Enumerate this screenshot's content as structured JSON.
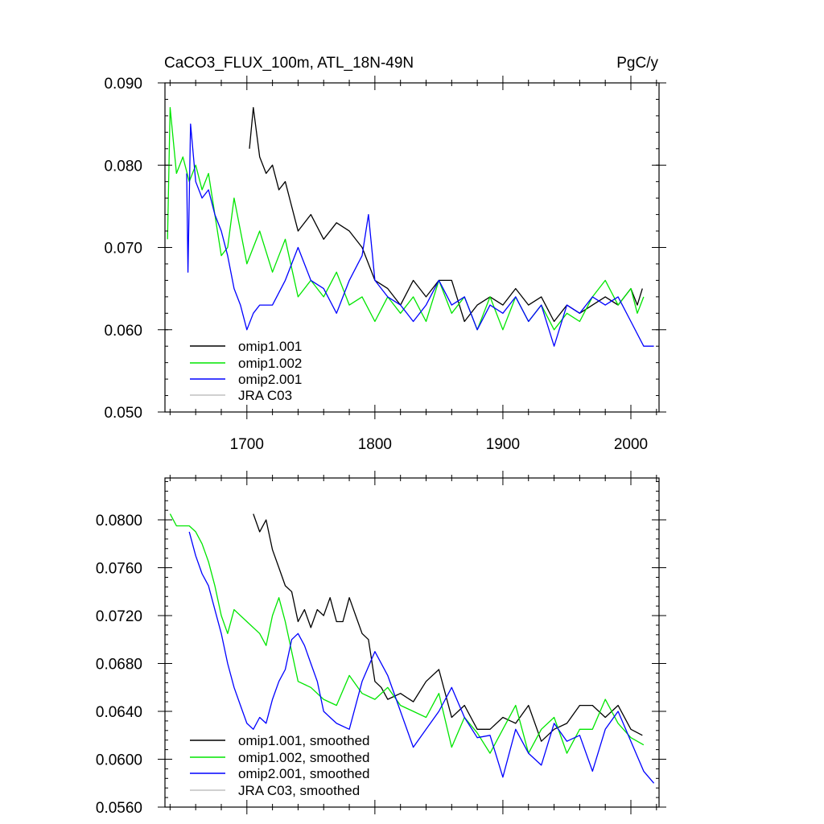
{
  "chart_data": [
    {
      "type": "line",
      "title": "CaCO3_FLUX_100m, ATL_18N-49N",
      "units": "PgC/y",
      "xlim": [
        1636,
        2022
      ],
      "ylim": [
        0.05,
        0.09
      ],
      "xticks": [
        1700,
        1800,
        1900,
        2000
      ],
      "xtick_labels": [
        "1700",
        "1800",
        "1900",
        "2000"
      ],
      "yticks": [
        0.05,
        0.06,
        0.07,
        0.08,
        0.09
      ],
      "ytick_labels": [
        "0.050",
        "0.060",
        "0.070",
        "0.080",
        "0.090"
      ],
      "legend_location": "bottom-left",
      "series": [
        {
          "name": "omip1.001",
          "color": "#000000",
          "x": [
            1702,
            1705,
            1710,
            1715,
            1720,
            1725,
            1730,
            1740,
            1750,
            1760,
            1770,
            1780,
            1790,
            1800,
            1810,
            1820,
            1830,
            1840,
            1850,
            1860,
            1870,
            1880,
            1890,
            1900,
            1910,
            1920,
            1930,
            1940,
            1950,
            1960,
            1970,
            1980,
            1990,
            2000,
            2005,
            2009
          ],
          "values": [
            0.082,
            0.087,
            0.081,
            0.079,
            0.08,
            0.077,
            0.078,
            0.072,
            0.074,
            0.071,
            0.073,
            0.072,
            0.07,
            0.066,
            0.065,
            0.063,
            0.066,
            0.064,
            0.066,
            0.066,
            0.061,
            0.063,
            0.064,
            0.063,
            0.065,
            0.063,
            0.064,
            0.061,
            0.063,
            0.062,
            0.063,
            0.064,
            0.063,
            0.065,
            0.063,
            0.065
          ]
        },
        {
          "name": "omip1.002",
          "color": "#00e600",
          "x": [
            1638,
            1640,
            1645,
            1650,
            1655,
            1660,
            1665,
            1670,
            1675,
            1680,
            1685,
            1690,
            1700,
            1710,
            1720,
            1730,
            1740,
            1750,
            1760,
            1770,
            1780,
            1790,
            1800,
            1810,
            1820,
            1830,
            1840,
            1850,
            1860,
            1870,
            1880,
            1890,
            1900,
            1910,
            1920,
            1930,
            1940,
            1950,
            1960,
            1970,
            1980,
            1990,
            2000,
            2005,
            2010
          ],
          "values": [
            0.071,
            0.087,
            0.079,
            0.081,
            0.078,
            0.08,
            0.077,
            0.079,
            0.074,
            0.069,
            0.07,
            0.076,
            0.068,
            0.072,
            0.067,
            0.071,
            0.064,
            0.066,
            0.064,
            0.067,
            0.063,
            0.064,
            0.061,
            0.064,
            0.062,
            0.064,
            0.061,
            0.066,
            0.062,
            0.064,
            0.06,
            0.064,
            0.06,
            0.064,
            0.061,
            0.063,
            0.06,
            0.062,
            0.061,
            0.064,
            0.066,
            0.063,
            0.065,
            0.062,
            0.064
          ]
        },
        {
          "name": "omip2.001",
          "color": "#0000ff",
          "x": [
            1653,
            1654,
            1656,
            1660,
            1665,
            1670,
            1675,
            1680,
            1685,
            1690,
            1695,
            1700,
            1705,
            1710,
            1720,
            1730,
            1740,
            1750,
            1760,
            1770,
            1780,
            1790,
            1795,
            1800,
            1810,
            1820,
            1830,
            1840,
            1850,
            1860,
            1870,
            1880,
            1890,
            1900,
            1910,
            1920,
            1930,
            1940,
            1950,
            1960,
            1970,
            1980,
            1990,
            2000,
            2010,
            2018
          ],
          "values": [
            0.079,
            0.067,
            0.085,
            0.078,
            0.076,
            0.077,
            0.074,
            0.072,
            0.069,
            0.065,
            0.063,
            0.06,
            0.062,
            0.063,
            0.063,
            0.066,
            0.07,
            0.066,
            0.065,
            0.062,
            0.066,
            0.069,
            0.074,
            0.066,
            0.064,
            0.063,
            0.061,
            0.063,
            0.066,
            0.063,
            0.064,
            0.06,
            0.063,
            0.062,
            0.064,
            0.061,
            0.063,
            0.058,
            0.063,
            0.062,
            0.064,
            0.063,
            0.064,
            0.061,
            0.058,
            0.058
          ]
        },
        {
          "name": "JRA C03",
          "color": "#c0c0c0",
          "x": [],
          "values": []
        }
      ]
    },
    {
      "type": "line",
      "title": "",
      "xlim": [
        1636,
        2022
      ],
      "ylim": [
        0.056,
        0.0835
      ],
      "xticks": [
        1700,
        1800,
        1900,
        2000
      ],
      "yticks": [
        0.056,
        0.06,
        0.064,
        0.068,
        0.072,
        0.076,
        0.08
      ],
      "ytick_labels": [
        "0.0560",
        "0.0600",
        "0.0640",
        "0.0680",
        "0.0720",
        "0.0760",
        "0.0800"
      ],
      "legend_location": "bottom-left",
      "series": [
        {
          "name": "omip1.001, smoothed",
          "color": "#000000",
          "x": [
            1705,
            1710,
            1715,
            1720,
            1725,
            1730,
            1735,
            1740,
            1745,
            1750,
            1755,
            1760,
            1765,
            1770,
            1775,
            1780,
            1785,
            1790,
            1795,
            1800,
            1805,
            1810,
            1820,
            1830,
            1840,
            1850,
            1860,
            1870,
            1880,
            1890,
            1900,
            1910,
            1920,
            1930,
            1940,
            1950,
            1960,
            1970,
            1980,
            1990,
            2000,
            2009
          ],
          "values": [
            0.0805,
            0.079,
            0.08,
            0.0775,
            0.076,
            0.0745,
            0.074,
            0.0715,
            0.0725,
            0.071,
            0.0725,
            0.072,
            0.0735,
            0.0715,
            0.0715,
            0.0735,
            0.072,
            0.0705,
            0.07,
            0.0665,
            0.066,
            0.065,
            0.0655,
            0.0648,
            0.0665,
            0.0675,
            0.0635,
            0.0645,
            0.0625,
            0.0625,
            0.0635,
            0.063,
            0.0645,
            0.0615,
            0.0625,
            0.063,
            0.0645,
            0.0645,
            0.0635,
            0.0645,
            0.0625,
            0.062
          ]
        },
        {
          "name": "omip1.002, smoothed",
          "color": "#00e600",
          "x": [
            1640,
            1645,
            1650,
            1655,
            1660,
            1665,
            1670,
            1675,
            1680,
            1685,
            1690,
            1700,
            1710,
            1715,
            1720,
            1725,
            1730,
            1735,
            1740,
            1750,
            1760,
            1770,
            1780,
            1790,
            1800,
            1810,
            1820,
            1830,
            1840,
            1850,
            1860,
            1870,
            1880,
            1890,
            1900,
            1910,
            1920,
            1930,
            1940,
            1950,
            1960,
            1970,
            1980,
            1990,
            2000,
            2010
          ],
          "values": [
            0.0805,
            0.0795,
            0.0795,
            0.0795,
            0.079,
            0.078,
            0.0765,
            0.0745,
            0.072,
            0.0705,
            0.0725,
            0.0715,
            0.0705,
            0.0695,
            0.072,
            0.0735,
            0.0715,
            0.069,
            0.0665,
            0.066,
            0.065,
            0.0645,
            0.067,
            0.0655,
            0.065,
            0.066,
            0.0645,
            0.064,
            0.0635,
            0.0655,
            0.061,
            0.0635,
            0.0622,
            0.0605,
            0.0625,
            0.0645,
            0.0605,
            0.0625,
            0.0635,
            0.0605,
            0.0625,
            0.0625,
            0.065,
            0.063,
            0.0618,
            0.0612
          ]
        },
        {
          "name": "omip2.001, smoothed",
          "color": "#0000ff",
          "x": [
            1655,
            1660,
            1665,
            1670,
            1675,
            1680,
            1685,
            1690,
            1695,
            1700,
            1705,
            1710,
            1715,
            1720,
            1725,
            1730,
            1735,
            1740,
            1745,
            1750,
            1755,
            1760,
            1765,
            1770,
            1780,
            1790,
            1800,
            1810,
            1820,
            1830,
            1840,
            1850,
            1860,
            1870,
            1880,
            1890,
            1900,
            1910,
            1920,
            1930,
            1940,
            1950,
            1960,
            1970,
            1980,
            1990,
            2000,
            2010,
            2018
          ],
          "values": [
            0.079,
            0.077,
            0.0755,
            0.0745,
            0.0725,
            0.0705,
            0.068,
            0.066,
            0.0645,
            0.063,
            0.0625,
            0.0635,
            0.063,
            0.065,
            0.0665,
            0.0675,
            0.07,
            0.0705,
            0.0695,
            0.068,
            0.0665,
            0.064,
            0.0635,
            0.063,
            0.0625,
            0.0665,
            0.069,
            0.067,
            0.064,
            0.061,
            0.0625,
            0.064,
            0.066,
            0.0635,
            0.0618,
            0.062,
            0.0585,
            0.0625,
            0.0605,
            0.0595,
            0.063,
            0.0615,
            0.062,
            0.059,
            0.0625,
            0.064,
            0.0615,
            0.059,
            0.058
          ]
        },
        {
          "name": "JRA C03, smoothed",
          "color": "#c0c0c0",
          "x": [],
          "values": []
        }
      ]
    }
  ]
}
